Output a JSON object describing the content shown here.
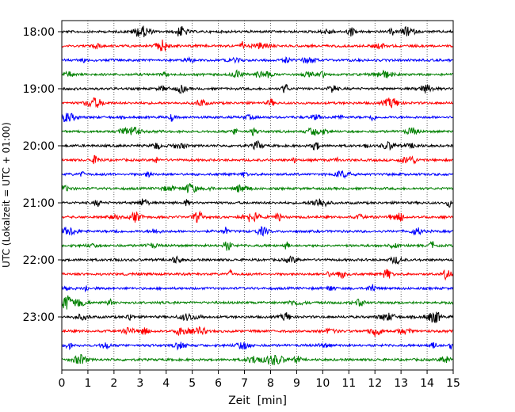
{
  "chart_data": {
    "type": "line",
    "subtype": "helicorder",
    "title": "",
    "xlabel": "Zeit  [min]",
    "ylabel": "UTC (Lokalzeit = UTC + 01:00)",
    "xlim": [
      0,
      15
    ],
    "x_ticks": [
      0,
      1,
      2,
      3,
      4,
      5,
      6,
      7,
      8,
      9,
      10,
      11,
      12,
      13,
      14,
      15
    ],
    "x_tick_labels": [
      "0",
      "1",
      "2",
      "3",
      "4",
      "5",
      "6",
      "7",
      "8",
      "9",
      "10",
      "11",
      "12",
      "13",
      "14",
      "15"
    ],
    "y_tick_labels": [
      "18:00",
      "19:00",
      "20:00",
      "21:00",
      "22:00",
      "23:00"
    ],
    "traces_per_hour": 4,
    "trace_minutes": 15,
    "vertical_grid": "dotted",
    "colors": [
      "#000000",
      "#ff0000",
      "#0000ff",
      "#008000"
    ],
    "traces": [
      {
        "start": "18:00",
        "color": "#000000"
      },
      {
        "start": "18:15",
        "color": "#ff0000"
      },
      {
        "start": "18:30",
        "color": "#0000ff"
      },
      {
        "start": "18:45",
        "color": "#008000"
      },
      {
        "start": "19:00",
        "color": "#000000"
      },
      {
        "start": "19:15",
        "color": "#ff0000"
      },
      {
        "start": "19:30",
        "color": "#0000ff"
      },
      {
        "start": "19:45",
        "color": "#008000"
      },
      {
        "start": "20:00",
        "color": "#000000"
      },
      {
        "start": "20:15",
        "color": "#ff0000"
      },
      {
        "start": "20:30",
        "color": "#0000ff"
      },
      {
        "start": "20:45",
        "color": "#008000"
      },
      {
        "start": "21:00",
        "color": "#000000"
      },
      {
        "start": "21:15",
        "color": "#ff0000"
      },
      {
        "start": "21:30",
        "color": "#0000ff"
      },
      {
        "start": "21:45",
        "color": "#008000"
      },
      {
        "start": "22:00",
        "color": "#000000"
      },
      {
        "start": "22:15",
        "color": "#ff0000"
      },
      {
        "start": "22:30",
        "color": "#0000ff"
      },
      {
        "start": "22:45",
        "color": "#008000"
      },
      {
        "start": "23:00",
        "color": "#000000"
      },
      {
        "start": "23:15",
        "color": "#ff0000"
      },
      {
        "start": "23:30",
        "color": "#0000ff"
      },
      {
        "start": "23:45",
        "color": "#008000"
      }
    ]
  }
}
